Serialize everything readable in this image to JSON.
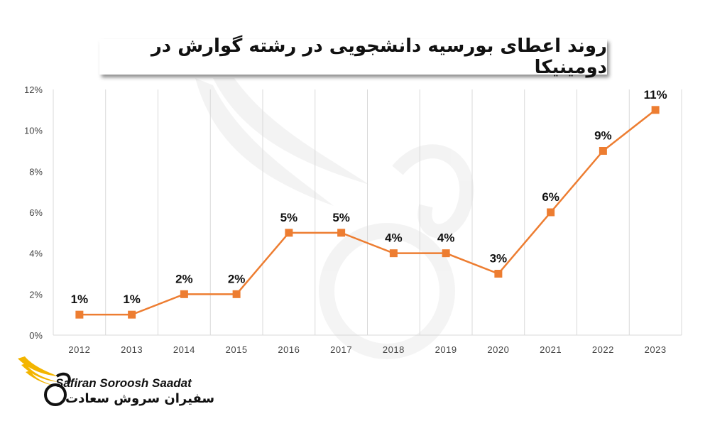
{
  "chart_data": {
    "type": "line",
    "title": "روند اعطای بورسیه دانشجویی در رشته گوارش در دومینیکا",
    "categories": [
      "2012",
      "2013",
      "2014",
      "2015",
      "2016",
      "2017",
      "2018",
      "2019",
      "2020",
      "2021",
      "2022",
      "2023"
    ],
    "series": [
      {
        "values": [
          1,
          1,
          2,
          2,
          5,
          5,
          4,
          4,
          3,
          6,
          9,
          11
        ],
        "labels": [
          "1%",
          "1%",
          "2%",
          "2%",
          "5%",
          "5%",
          "4%",
          "4%",
          "3%",
          "6%",
          "9%",
          "11%"
        ]
      }
    ],
    "yticks": [
      "0%",
      "2%",
      "4%",
      "6%",
      "8%",
      "10%",
      "12%"
    ],
    "ylim": [
      0,
      12
    ],
    "grid": "vertical",
    "line_color": "#ed7d31"
  },
  "logo": {
    "text_en": "Safiran Soroosh Saadat",
    "text_fa": "سفیران سروش سعادت"
  }
}
